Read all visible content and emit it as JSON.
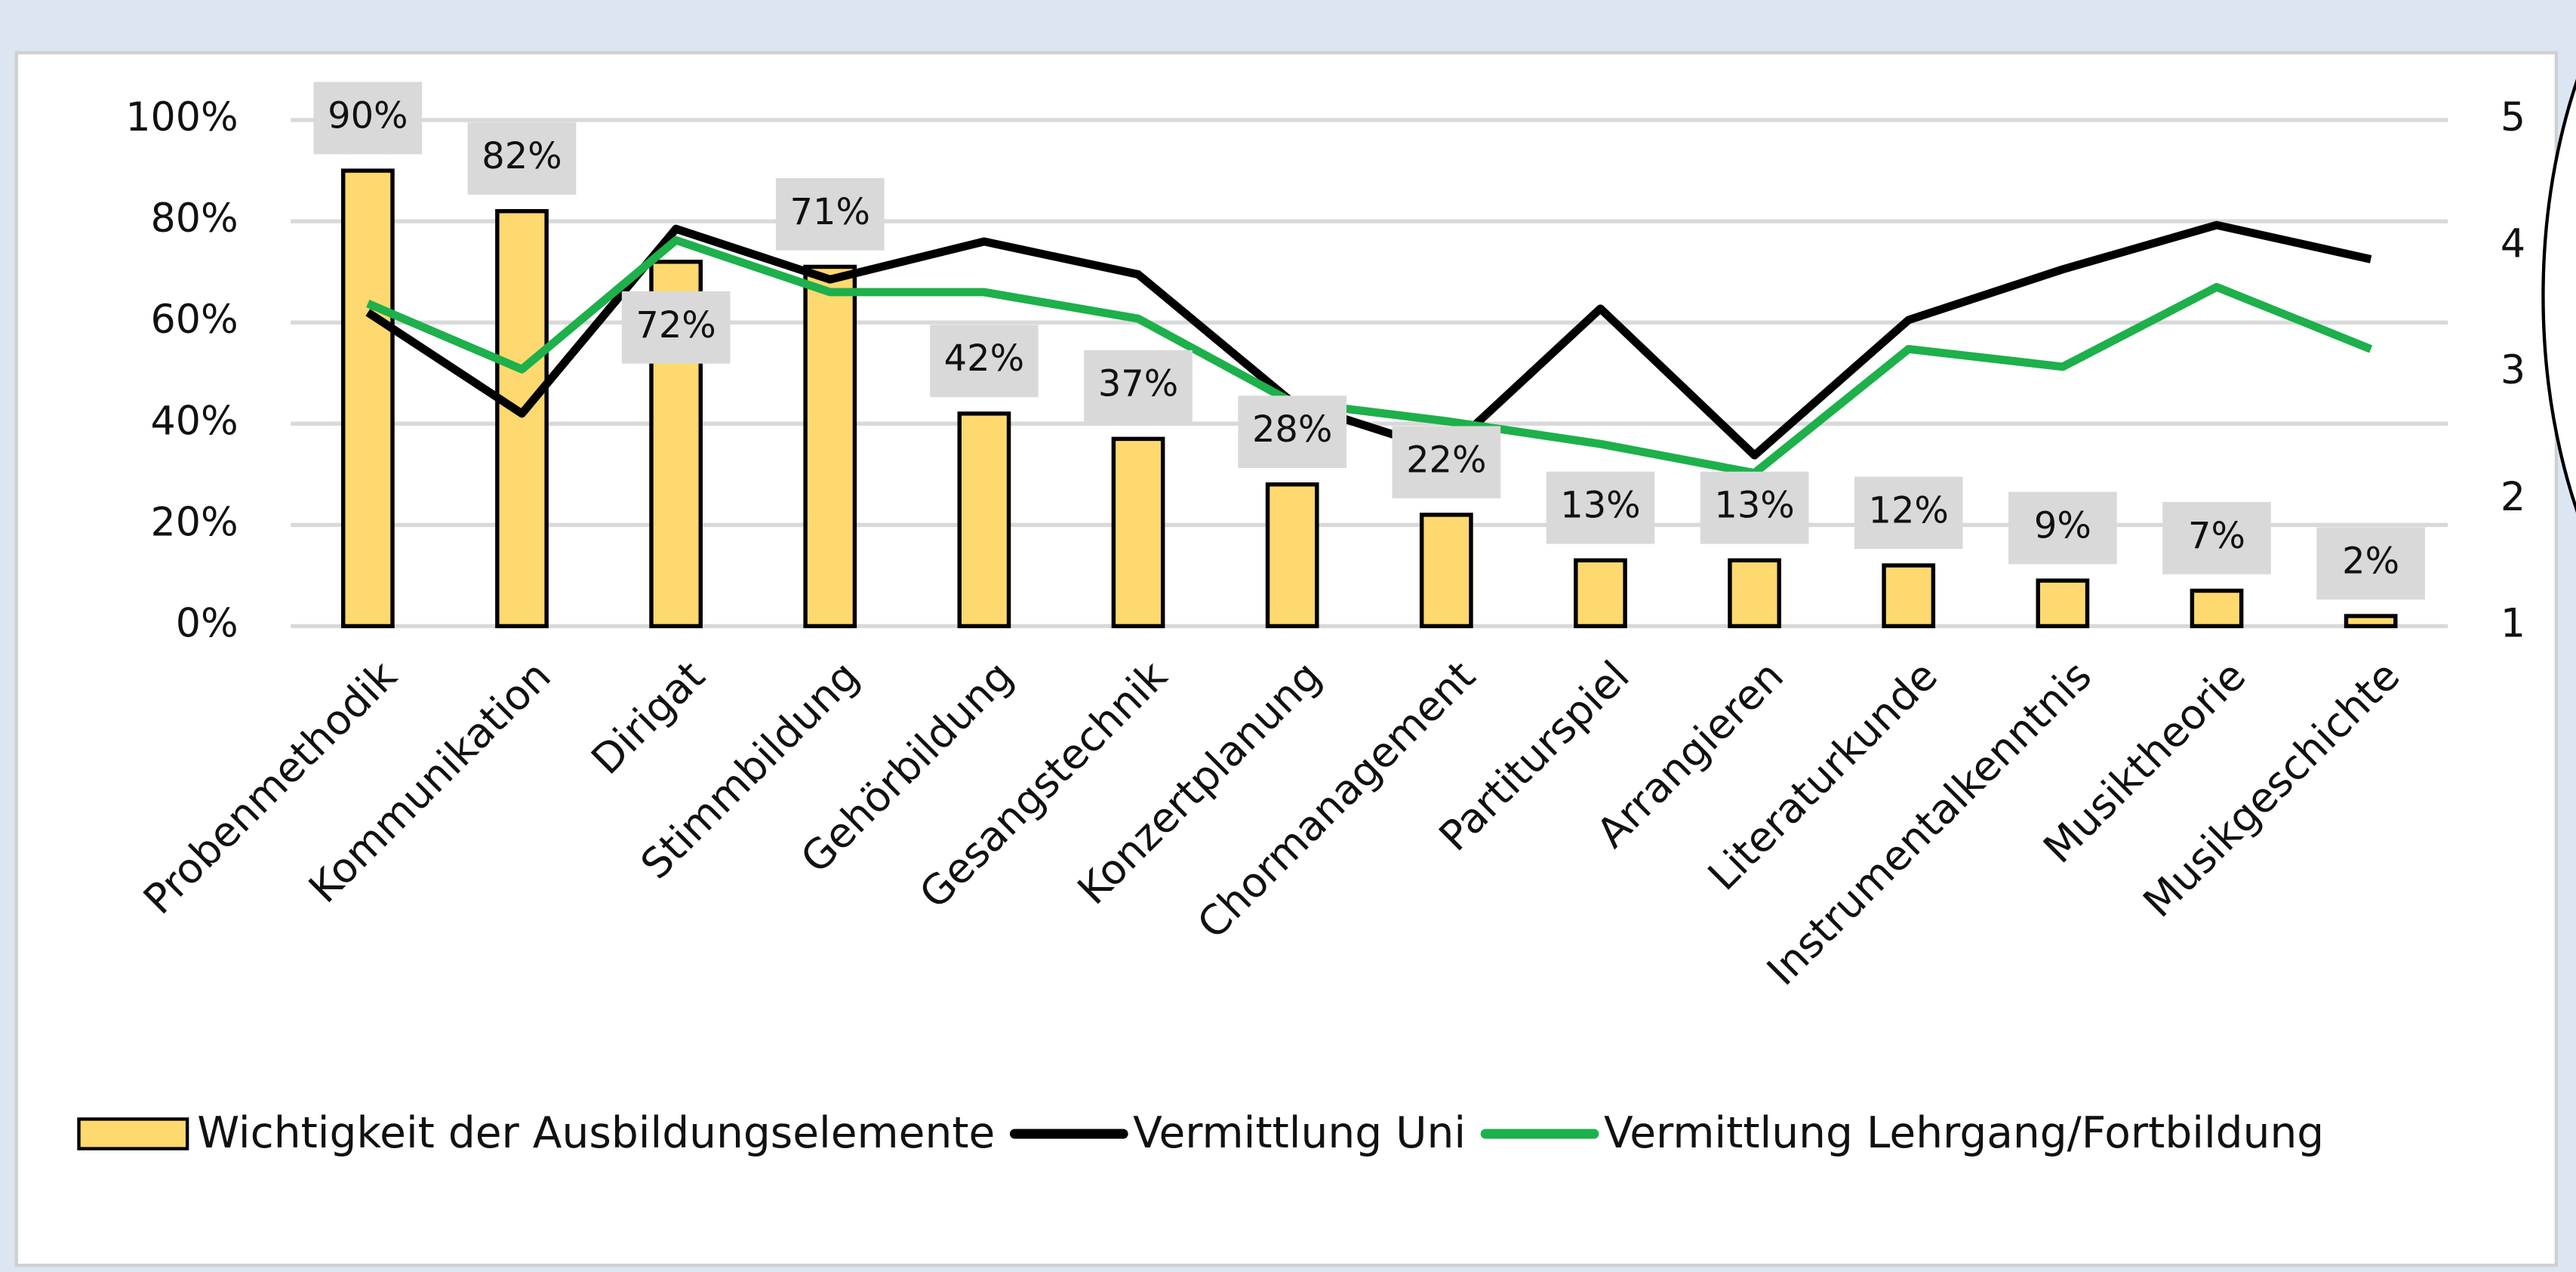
{
  "chart_data": {
    "type": "bar",
    "categories": [
      "Probenmethodik",
      "Kommunikation",
      "Dirigat",
      "Stimmbildung",
      "Gehörbildung",
      "Gesangstechnik",
      "Konzertplanung",
      "Chormanagement",
      "Partiturspiel",
      "Arrangieren",
      "Literaturkunde",
      "Instrumentalkenntnis",
      "Musiktheorie",
      "Musikgeschichte"
    ],
    "series": [
      {
        "name": "Wichtigkeit der Ausbildungselemente",
        "type": "bar",
        "color": "#fdd96f",
        "axis": "y",
        "values": [
          90,
          82,
          72,
          71,
          42,
          37,
          28,
          22,
          13,
          13,
          12,
          9,
          7,
          2
        ],
        "value_labels": [
          "90%",
          "82%",
          "72%",
          "71%",
          "42%",
          "37%",
          "28%",
          "22%",
          "13%",
          "13%",
          "12%",
          "9%",
          "7%",
          "2%"
        ]
      },
      {
        "name": "Vermittlung Uni",
        "type": "line",
        "color": "#000000",
        "axis": "y2",
        "values": [
          3.48,
          2.68,
          4.14,
          3.74,
          4.04,
          3.78,
          2.77,
          2.38,
          3.51,
          2.35,
          3.42,
          3.82,
          4.17,
          3.9
        ]
      },
      {
        "name": "Vermittlung Lehrgang/Fortbildung",
        "type": "line",
        "color": "#1db04b",
        "axis": "y2",
        "values": [
          3.55,
          3.03,
          4.05,
          3.64,
          3.64,
          3.43,
          2.77,
          2.62,
          2.44,
          2.21,
          3.19,
          3.05,
          3.68,
          3.19
        ]
      }
    ],
    "ylim": [
      0,
      100
    ],
    "yticks": [
      {
        "value": 0,
        "label": "0%"
      },
      {
        "value": 20,
        "label": "20%"
      },
      {
        "value": 40,
        "label": "40%"
      },
      {
        "value": 60,
        "label": "60%"
      },
      {
        "value": 80,
        "label": "80%"
      },
      {
        "value": 100,
        "label": "100%"
      }
    ],
    "y2lim": [
      1,
      5
    ],
    "y2ticks": [
      1,
      2,
      3,
      4,
      5
    ],
    "grid": true,
    "legend": "bottom"
  }
}
